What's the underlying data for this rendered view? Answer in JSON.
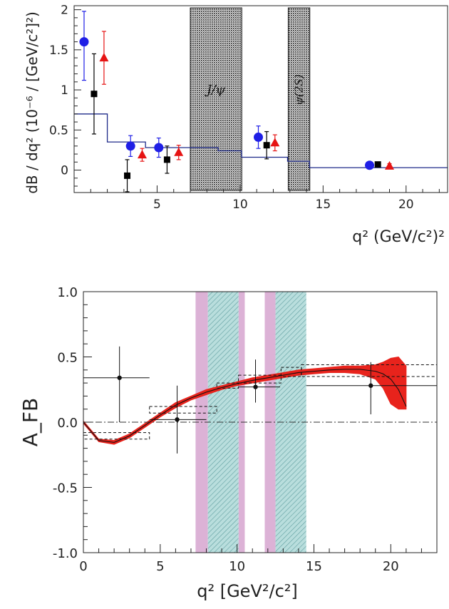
{
  "chart_data": [
    {
      "type": "scatter",
      "xlabel": "q² (GeV/c²)²",
      "ylabel": "dB / dq² (10⁻⁶ / [GeV/c²]²)",
      "xlim": [
        0,
        22.5
      ],
      "ylim": [
        -0.28,
        2.05
      ],
      "x_ticks": [
        5,
        10,
        15,
        20
      ],
      "y_ticks": [
        0,
        0.5,
        1,
        1.5,
        2
      ],
      "y_tick_labels": [
        "0",
        "0.5",
        "1",
        "1.5",
        "2"
      ],
      "vetoed_regions": [
        {
          "label": "J/ψ",
          "x": [
            7.0,
            10.1
          ]
        },
        {
          "label": "ψ(2S)",
          "x": [
            12.9,
            14.2
          ]
        }
      ],
      "series": [
        {
          "color": "#1f1fe6",
          "marker": "circle",
          "x": [
            0.6,
            3.4,
            5.1,
            11.1,
            17.8
          ],
          "y": [
            1.6,
            0.3,
            0.28,
            0.41,
            0.06
          ],
          "yerr_lo": [
            0.48,
            0.13,
            0.12,
            0.14,
            0.03
          ],
          "yerr_hi": [
            0.38,
            0.13,
            0.12,
            0.14,
            0.03
          ]
        },
        {
          "color": "#000000",
          "marker": "square",
          "x": [
            1.2,
            3.2,
            5.6,
            11.6,
            18.3
          ],
          "y": [
            0.95,
            -0.07,
            0.13,
            0.31,
            0.07
          ],
          "yerr_lo": [
            0.5,
            0.2,
            0.17,
            0.17,
            0.03
          ],
          "yerr_hi": [
            0.5,
            0.2,
            0.17,
            0.17,
            0.03
          ]
        },
        {
          "color": "#e61414",
          "marker": "triangle",
          "x": [
            1.8,
            4.1,
            6.3,
            12.1,
            19.0
          ],
          "y": [
            1.4,
            0.19,
            0.22,
            0.34,
            0.05
          ],
          "yerr_lo": [
            0.33,
            0.08,
            0.09,
            0.1,
            0.03
          ],
          "yerr_hi": [
            0.33,
            0.08,
            0.09,
            0.1,
            0.03
          ]
        }
      ],
      "model_line": {
        "color": "#1e2a8a",
        "steps": [
          {
            "x": [
              0,
              2
            ],
            "y": 0.7
          },
          {
            "x": [
              2,
              4.3
            ],
            "y": 0.35
          },
          {
            "x": [
              4.3,
              8.68
            ],
            "y": 0.28
          },
          {
            "x": [
              8.68,
              10.09
            ],
            "y": 0.24
          },
          {
            "x": [
              10.09,
              12.86
            ],
            "y": 0.16
          },
          {
            "x": [
              12.86,
              14.18
            ],
            "y": 0.11
          },
          {
            "x": [
              14.18,
              22.5
            ],
            "y": 0.03
          }
        ]
      }
    },
    {
      "type": "scatter",
      "xlabel": "q² [GeV²/c²]",
      "ylabel": "A_FB",
      "xlim": [
        0,
        23.0
      ],
      "ylim": [
        -1.0,
        1.0
      ],
      "x_ticks": [
        0,
        5,
        10,
        15,
        20
      ],
      "y_ticks": [
        -1.0,
        -0.5,
        0.0,
        0.5,
        1.0
      ],
      "y_tick_labels": [
        "-1.0",
        "-0.5",
        "0.0",
        "0.5",
        "1.0"
      ],
      "vetoed_regions": [
        {
          "x": [
            7.3,
            8.1
          ],
          "style": "pink"
        },
        {
          "x": [
            8.1,
            10.1
          ],
          "style": "hatched"
        },
        {
          "x": [
            10.1,
            10.5
          ],
          "style": "pink"
        },
        {
          "x": [
            11.8,
            12.5
          ],
          "style": "pink"
        },
        {
          "x": [
            12.5,
            14.5
          ],
          "style": "hatched"
        }
      ],
      "data_points": {
        "x": [
          2.35,
          6.1,
          11.2,
          18.7
        ],
        "y": [
          0.34,
          0.02,
          0.27,
          0.28
        ],
        "xerr_lo": [
          2.35,
          1.8,
          1.1,
          4.2
        ],
        "xerr_hi": [
          1.95,
          1.9,
          1.6,
          4.3
        ],
        "yerr_lo": [
          0.34,
          0.26,
          0.12,
          0.22
        ],
        "yerr_hi": [
          0.24,
          0.26,
          0.21,
          0.18
        ]
      },
      "prediction_boxes": [
        {
          "x": [
            0,
            4.3
          ],
          "y": [
            -0.13,
            -0.08
          ]
        },
        {
          "x": [
            4.3,
            8.68
          ],
          "y": [
            0.07,
            0.12
          ]
        },
        {
          "x": [
            8.68,
            10.09
          ],
          "y": [
            0.26,
            0.3
          ]
        },
        {
          "x": [
            10.09,
            12.86
          ],
          "y": [
            0.3,
            0.36
          ]
        },
        {
          "x": [
            12.86,
            14.18
          ],
          "y": [
            0.35,
            0.42
          ]
        },
        {
          "x": [
            14.18,
            23.0
          ],
          "y": [
            0.35,
            0.44
          ]
        }
      ],
      "theory_band": {
        "color": "#e8231c",
        "x": [
          0,
          1,
          2,
          3,
          4,
          5,
          6,
          7,
          8,
          9,
          10,
          11,
          12,
          13,
          14,
          15,
          16,
          17,
          18,
          19,
          19.5,
          20,
          20.5,
          21
        ],
        "lo": [
          -0.01,
          -0.15,
          -0.17,
          -0.12,
          -0.04,
          0.04,
          0.11,
          0.17,
          0.21,
          0.25,
          0.28,
          0.3,
          0.32,
          0.34,
          0.36,
          0.37,
          0.38,
          0.38,
          0.37,
          0.33,
          0.26,
          0.14,
          0.1,
          0.1
        ],
        "hi": [
          0.01,
          -0.13,
          -0.14,
          -0.09,
          -0.01,
          0.07,
          0.15,
          0.2,
          0.25,
          0.28,
          0.31,
          0.34,
          0.36,
          0.38,
          0.4,
          0.41,
          0.42,
          0.43,
          0.43,
          0.44,
          0.46,
          0.49,
          0.5,
          0.43
        ]
      },
      "central_curve": {
        "x": [
          0,
          1,
          2,
          3,
          4,
          5,
          6,
          7,
          8,
          9,
          10,
          11,
          12,
          13,
          14,
          15,
          16,
          17,
          18,
          19,
          19.5,
          20,
          20.5,
          21
        ],
        "y": [
          0.0,
          -0.14,
          -0.155,
          -0.105,
          -0.025,
          0.055,
          0.13,
          0.185,
          0.23,
          0.265,
          0.295,
          0.32,
          0.34,
          0.36,
          0.38,
          0.39,
          0.4,
          0.405,
          0.405,
          0.39,
          0.37,
          0.33,
          0.25,
          0.12
        ]
      },
      "zero_line": {
        "y": 0.0,
        "style": "dash-dot"
      }
    }
  ]
}
